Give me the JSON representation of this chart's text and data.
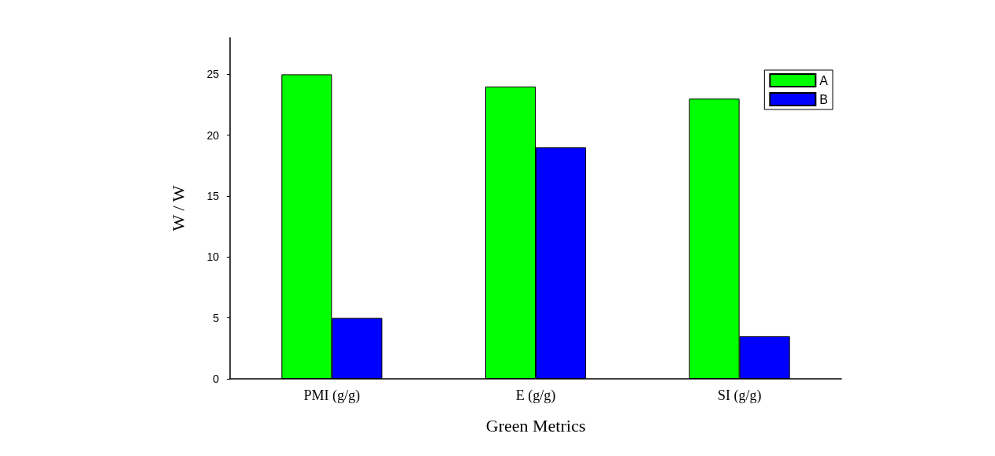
{
  "chart_data": {
    "type": "bar",
    "xlabel": "Green Metrics",
    "ylabel": "W / W",
    "categories": [
      "PMI (g/g)",
      "E (g/g)",
      "SI (g/g)"
    ],
    "series": [
      {
        "name": "A",
        "color": "#00ff00",
        "values": [
          25,
          24,
          23
        ]
      },
      {
        "name": "B",
        "color": "#0000ff",
        "values": [
          5,
          19,
          3.5
        ]
      }
    ],
    "ylim": [
      0,
      28
    ],
    "yticks": [
      0,
      5,
      10,
      15,
      20,
      25
    ],
    "grid": false,
    "legend": "top right"
  }
}
